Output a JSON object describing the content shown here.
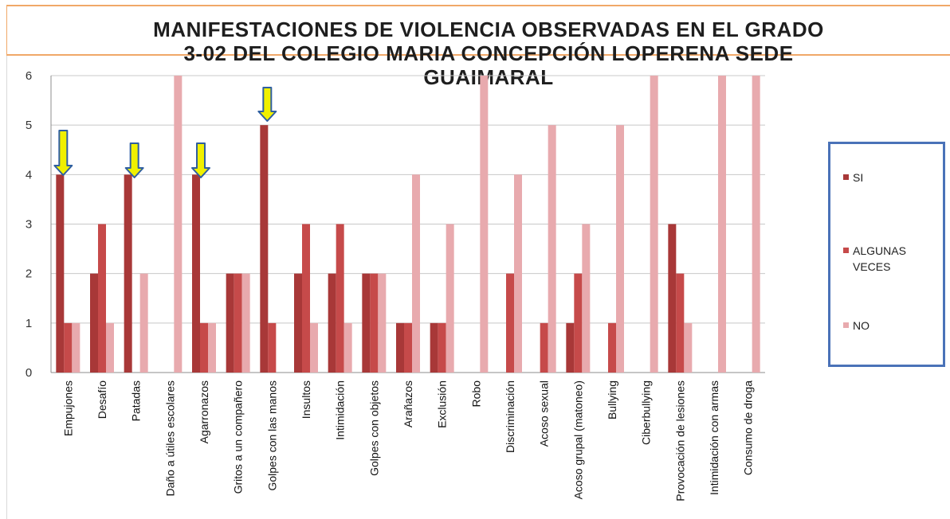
{
  "title": "MANIFESTACIONES  DE VIOLENCIA OBSERVADAS  EN EL GRADO\n3-02 DEL COLEGIO MARIA CONCEPCIÓN LOPERENA SEDE\nGUAIMARAL",
  "legend": [
    {
      "name": "SI",
      "color": "#a83838"
    },
    {
      "name": "ALGUNAS VECES",
      "color": "#c64a4a"
    },
    {
      "name": "NO",
      "color": "#e8aaae"
    }
  ],
  "chart_data": {
    "type": "bar",
    "title": "MANIFESTACIONES  DE VIOLENCIA OBSERVADAS  EN EL GRADO 3-02 DEL COLEGIO MARIA CONCEPCIÓN LOPERENA SEDE GUAIMARAL",
    "xlabel": "",
    "ylabel": "",
    "ylim": [
      0,
      6
    ],
    "yticks": [
      "0",
      "1",
      "2",
      "3",
      "4",
      "5",
      "6"
    ],
    "grid": true,
    "legend_position": "right",
    "categories": [
      "Empujones",
      "Desafío",
      "Patadas",
      "Daño a útiles escolares",
      "Agarronazos",
      "Gritos a un compañero",
      "Golpes con las manos",
      "Insultos",
      "Intimidación",
      "Golpes con objetos",
      "Arañazos",
      "Exclusión",
      "Robo",
      "Discriminación",
      "Acoso sexual",
      "Acoso grupal (matoneo)",
      "Bullying",
      "Ciberbullying",
      "Provocación de lesiones",
      "Intimidación con  armas",
      "Consumo de droga"
    ],
    "series": [
      {
        "name": "SI",
        "values": [
          4,
          2,
          4,
          0,
          4,
          2,
          5,
          2,
          2,
          2,
          1,
          1,
          0,
          0,
          0,
          1,
          0,
          0,
          3,
          0,
          0
        ]
      },
      {
        "name": "ALGUNAS VECES",
        "values": [
          1,
          3,
          0,
          0,
          1,
          2,
          1,
          3,
          3,
          2,
          1,
          1,
          0,
          2,
          1,
          2,
          1,
          0,
          2,
          0,
          0
        ]
      },
      {
        "name": "NO",
        "values": [
          1,
          1,
          2,
          6,
          1,
          2,
          0,
          1,
          1,
          2,
          4,
          3,
          6,
          4,
          5,
          3,
          5,
          6,
          1,
          6,
          6
        ]
      }
    ],
    "annotations": [
      {
        "type": "arrow",
        "category": "Empujones",
        "color": "#f0f000"
      },
      {
        "type": "arrow",
        "category": "Patadas",
        "color": "#f0f000"
      },
      {
        "type": "arrow",
        "category": "Agarronazos",
        "color": "#f0f000"
      },
      {
        "type": "arrow",
        "category": "Golpes con las manos",
        "color": "#f0f000"
      }
    ]
  }
}
